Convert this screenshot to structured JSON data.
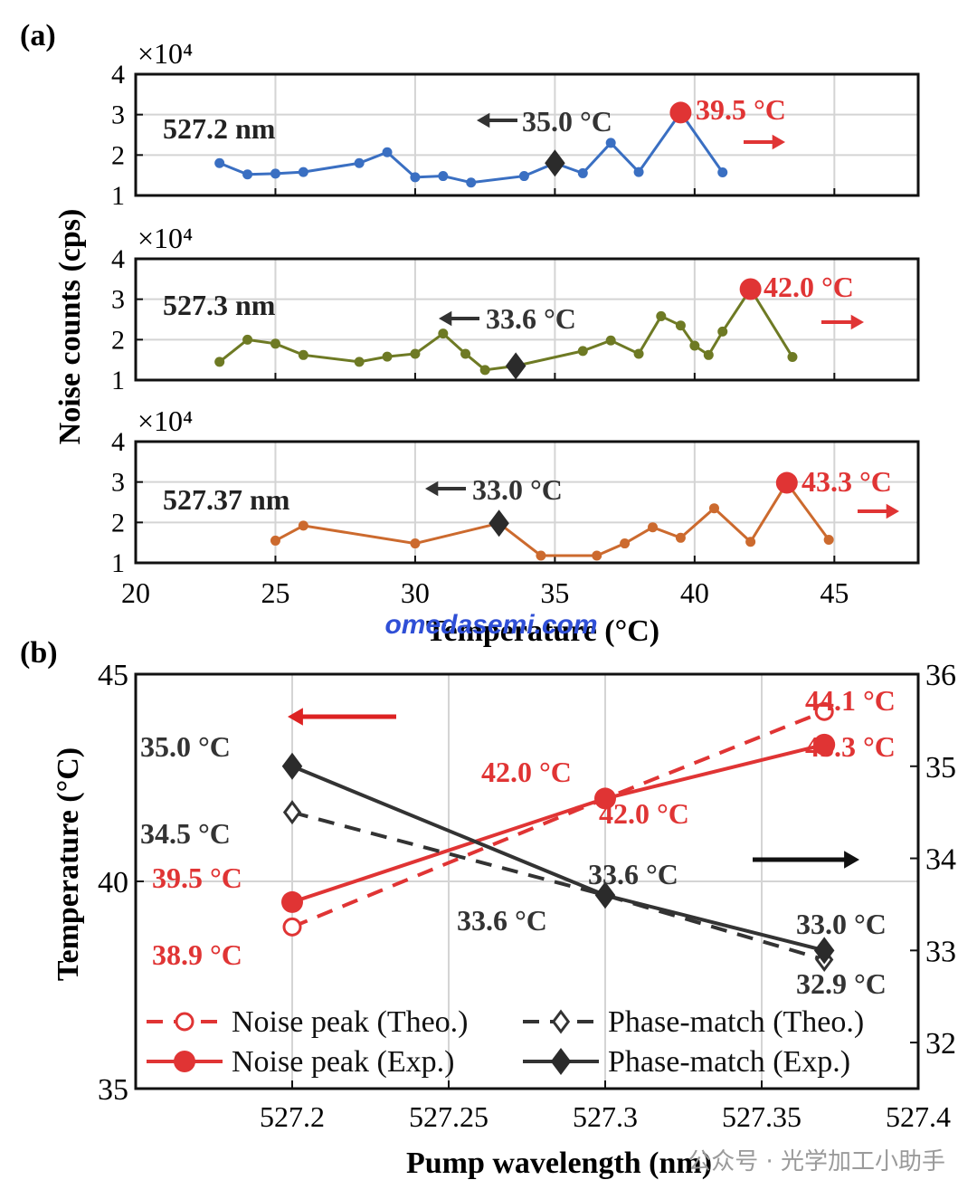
{
  "panel_a_label": "(a)",
  "panel_b_label": "(b)",
  "watermark": "omedasemi.com",
  "wechat_watermark": "公众号 · 光学加工小助手",
  "colors": {
    "blue": "#3a6fc2",
    "olive": "#6e7a24",
    "orange": "#cc6a2e",
    "red": "#e03434",
    "dark": "#333333",
    "grid": "#d4d4d4",
    "watermark": "#2f4fd6"
  },
  "chart_data": [
    {
      "type": "line",
      "panel": "a",
      "title": "",
      "xlabel": "Temperature (°C)",
      "ylabel": "Noise counts (cps)",
      "xlim": [
        20,
        48
      ],
      "x_ticks": [
        "20",
        "25",
        "30",
        "35",
        "40",
        "45"
      ],
      "y_multiplier": "×10⁴",
      "subplots": [
        {
          "wavelength_label": "527.2 nm",
          "color_key": "blue",
          "ylim": [
            1,
            4
          ],
          "y_ticks": [
            "1",
            "2",
            "3",
            "4"
          ],
          "x": [
            23,
            24,
            25,
            26,
            28,
            29,
            30,
            31,
            32,
            33.9,
            35,
            36,
            37,
            38,
            39.5,
            41
          ],
          "y": [
            1.8,
            1.52,
            1.54,
            1.58,
            1.8,
            2.07,
            1.45,
            1.48,
            1.32,
            1.48,
            1.8,
            1.55,
            2.3,
            1.58,
            3.05,
            1.57
          ],
          "phase_match": {
            "x": 35.0,
            "y": 1.8,
            "label": "35.0 °C"
          },
          "noise_peak": {
            "x": 39.5,
            "y": 3.05,
            "label": "39.5 °C"
          }
        },
        {
          "wavelength_label": "527.3 nm",
          "color_key": "olive",
          "ylim": [
            1,
            4
          ],
          "y_ticks": [
            "1",
            "2",
            "3",
            "4"
          ],
          "x": [
            23,
            24,
            25,
            26,
            28,
            29,
            30,
            31,
            31.8,
            32.5,
            33.6,
            36,
            37,
            38,
            38.8,
            39.5,
            40,
            40.5,
            41,
            42,
            43.5
          ],
          "y": [
            1.45,
            2.0,
            1.9,
            1.62,
            1.45,
            1.58,
            1.65,
            2.15,
            1.65,
            1.25,
            1.35,
            1.72,
            1.98,
            1.65,
            2.58,
            2.35,
            1.85,
            1.62,
            2.2,
            3.25,
            1.57
          ],
          "phase_match": {
            "x": 33.6,
            "y": 1.35,
            "label": "33.6 °C"
          },
          "noise_peak": {
            "x": 42.0,
            "y": 3.25,
            "label": "42.0 °C"
          }
        },
        {
          "wavelength_label": "527.37 nm",
          "color_key": "orange",
          "ylim": [
            1,
            4
          ],
          "y_ticks": [
            "1",
            "2",
            "3",
            "4"
          ],
          "x": [
            25,
            26,
            30,
            33.0,
            34.5,
            36.5,
            37.5,
            38.5,
            39.5,
            40.7,
            42,
            43.3,
            44.8
          ],
          "y": [
            1.55,
            1.92,
            1.48,
            1.98,
            1.18,
            1.18,
            1.48,
            1.88,
            1.62,
            2.35,
            1.52,
            2.98,
            1.57
          ],
          "phase_match": {
            "x": 33.0,
            "y": 1.98,
            "label": "33.0 °C"
          },
          "noise_peak": {
            "x": 43.3,
            "y": 2.98,
            "label": "43.3 °C"
          }
        }
      ]
    },
    {
      "type": "line",
      "panel": "b",
      "title": "",
      "xlabel": "Pump wavelength (nm)",
      "ylabel": "Temperature (°C)",
      "categories": [
        "527.2",
        "527.3",
        "527.37"
      ],
      "xlim": [
        527.15,
        527.4
      ],
      "x_ticks": [
        "527.2",
        "527.25",
        "527.3",
        "527.35",
        "527.4"
      ],
      "ylim_left": [
        35,
        45
      ],
      "y_ticks_left": [
        "35",
        "40",
        "45"
      ],
      "ylim_right": [
        31.5,
        36
      ],
      "y_ticks_right": [
        "32",
        "33",
        "34",
        "35",
        "36"
      ],
      "series": [
        {
          "name": "Noise peak (Theo.)",
          "axis": "left",
          "style": "dashed-open-circle",
          "color_key": "red",
          "x": [
            527.2,
            527.3,
            527.37
          ],
          "values": [
            38.9,
            42.0,
            44.1
          ],
          "labels": [
            "38.9 °C",
            "42.0 °C",
            "44.1 °C"
          ]
        },
        {
          "name": "Noise peak (Exp.)",
          "axis": "left",
          "style": "solid-filled-circle",
          "color_key": "red",
          "x": [
            527.2,
            527.3,
            527.37
          ],
          "values": [
            39.5,
            42.0,
            43.3
          ],
          "labels": [
            "39.5 °C",
            "42.0 °C",
            "43.3 °C"
          ]
        },
        {
          "name": "Phase-match (Theo.)",
          "axis": "right",
          "style": "dashed-open-diamond",
          "color_key": "dark",
          "x": [
            527.2,
            527.3,
            527.37
          ],
          "values": [
            34.5,
            33.6,
            32.9
          ],
          "labels": [
            "34.5 °C",
            "33.6 °C",
            "32.9 °C"
          ]
        },
        {
          "name": "Phase-match (Exp.)",
          "axis": "right",
          "style": "solid-filled-diamond",
          "color_key": "dark",
          "x": [
            527.2,
            527.3,
            527.37
          ],
          "values": [
            35.0,
            33.6,
            33.0
          ],
          "labels": [
            "35.0 °C",
            "33.6 °C",
            "33.0 °C"
          ]
        }
      ],
      "legend": {
        "placement": "bottom",
        "entries": [
          "Noise peak (Theo.)",
          "Phase-match (Theo.)",
          "Noise peak (Exp.)",
          "Phase-match (Exp.)"
        ]
      }
    }
  ]
}
